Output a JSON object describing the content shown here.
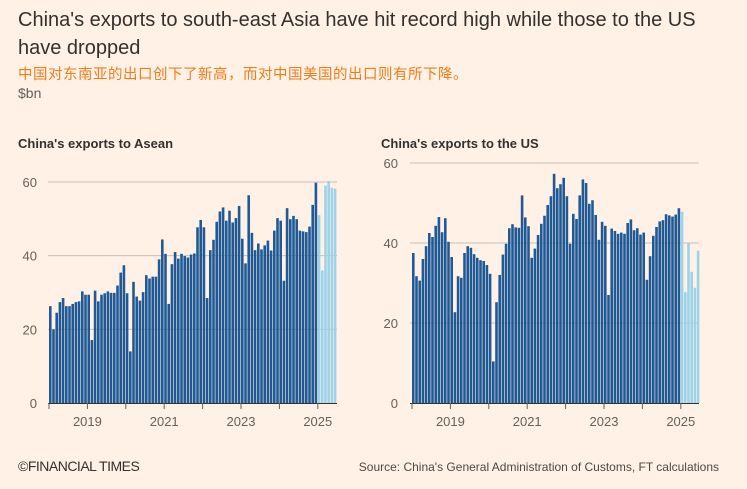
{
  "header": {
    "title": "China's exports to south-east Asia have hit record high while those to the US have dropped",
    "subtitle_cn": "中国对东南亚的出口创下了新高，而对中国美国的出口则有所下降。",
    "unit": "$bn"
  },
  "footer": {
    "logo": "©FINANCIAL TIMES",
    "source": "Source: China's General Administration of Customs, FT calculations"
  },
  "colors": {
    "background": "#FFF1E5",
    "bar": "#1F5A96",
    "bar_2025": "#9DD3E8",
    "subtitle_cn": "#F07D1A",
    "grid": "#CDBFB3"
  },
  "chart_data": [
    {
      "type": "bar",
      "title": "China's exports to Asean",
      "x_range": [
        "2018-01",
        "2025-06"
      ],
      "x_ticks": [
        "2019",
        "2021",
        "2023",
        "2025"
      ],
      "y_ticks": [
        0,
        20,
        40,
        60
      ],
      "ylim": [
        0,
        60
      ],
      "grid": true,
      "highlight_from": "2025-01",
      "values": [
        26.3,
        20,
        24.5,
        27.4,
        28.5,
        26.3,
        26.3,
        26.9,
        27.4,
        27.6,
        30.3,
        29.4,
        29.4,
        17.1,
        30.5,
        27.6,
        29.4,
        29.8,
        30.3,
        29.9,
        29.9,
        31.9,
        35.4,
        37.4,
        29.8,
        14,
        32.9,
        28.9,
        27.8,
        30.1,
        34.7,
        33.8,
        34.3,
        34.3,
        39,
        44.4,
        40.5,
        26.9,
        37.7,
        41,
        39.2,
        40.5,
        39.9,
        39.5,
        40.3,
        40.6,
        47.7,
        49.7,
        47.7,
        28.5,
        41.5,
        44.3,
        49.2,
        52,
        53.1,
        49.5,
        52.2,
        49,
        50.2,
        53.5,
        44.6,
        37.9,
        56.4,
        46.2,
        41.5,
        43.3,
        41.7,
        42.8,
        44.1,
        41.4,
        46.8,
        50.2,
        49.5,
        33.2,
        52.9,
        49.9,
        50.8,
        49.9,
        46.8,
        46.6,
        46.4,
        47.9,
        53.8,
        59.8,
        51,
        36,
        59,
        60.3,
        58.4,
        58.2
      ]
    },
    {
      "type": "bar",
      "title": "China's exports to the US",
      "x_range": [
        "2018-01",
        "2025-06"
      ],
      "x_ticks": [
        "2019",
        "2021",
        "2023",
        "2025"
      ],
      "y_ticks": [
        0,
        20,
        40,
        60
      ],
      "ylim": [
        0,
        60
      ],
      "grid": true,
      "highlight_from": "2025-01",
      "values": [
        37.5,
        31.7,
        30.6,
        36,
        39.2,
        42.5,
        41.5,
        44.3,
        46.5,
        42.7,
        46.2,
        40.3,
        36.5,
        22.7,
        31.7,
        31.3,
        37.5,
        39.2,
        38.8,
        37.2,
        36.3,
        35.7,
        35.5,
        34.5,
        32.3,
        10.4,
        25.2,
        32,
        37.1,
        39.8,
        43.7,
        44.7,
        43.9,
        43.8,
        51.9,
        46.4,
        44.2,
        36.3,
        38.6,
        42,
        44.8,
        46.8,
        49.5,
        51.7,
        57.3,
        53.7,
        54.7,
        56.3,
        51.7,
        39.8,
        47.3,
        46,
        51.9,
        55.9,
        55,
        49.8,
        50.7,
        47,
        40.8,
        45.3,
        44.3,
        27,
        43.6,
        43,
        42.3,
        42.6,
        42.3,
        45,
        45.9,
        43.2,
        43.7,
        42.1,
        42.6,
        30.8,
        36.7,
        41.8,
        44,
        45.4,
        45.7,
        47.2,
        46.9,
        46.6,
        47.1,
        48.7,
        47.8,
        27.7,
        39.9,
        32.8,
        28.8,
        38.1
      ]
    }
  ]
}
